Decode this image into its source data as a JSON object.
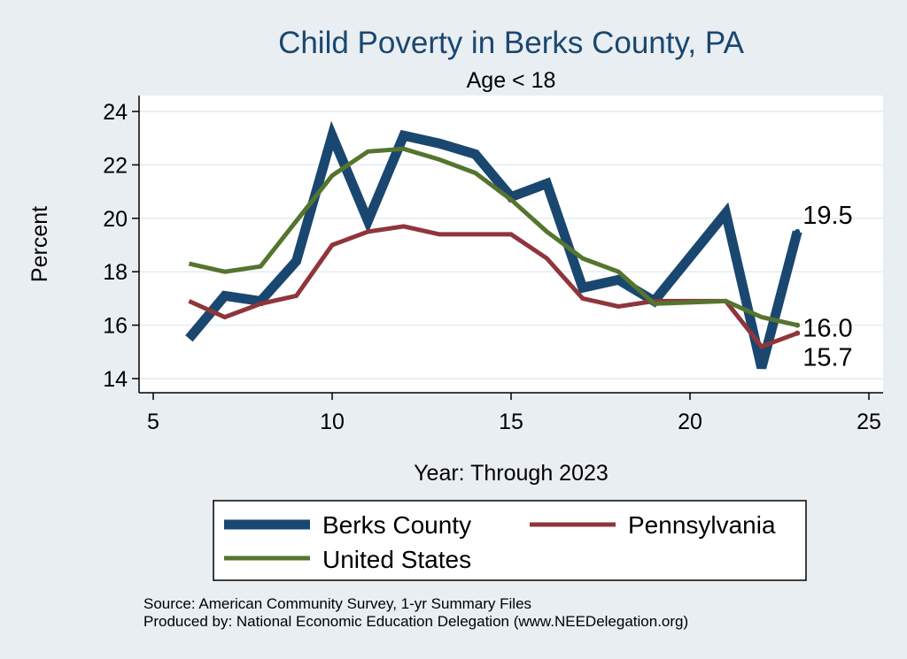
{
  "chart_data": {
    "type": "line",
    "title": "Child Poverty in Berks County, PA",
    "subtitle": "Age < 18",
    "xlabel": "Year: Through 2023",
    "ylabel": "Percent",
    "xlim": [
      5,
      25
    ],
    "ylim": [
      14,
      24
    ],
    "xticks": [
      5,
      10,
      15,
      20,
      25
    ],
    "yticks": [
      14,
      16,
      18,
      20,
      22,
      24
    ],
    "grid": true,
    "legend_position": "bottom",
    "series": [
      {
        "name": "Berks County",
        "color": "#1a476f",
        "x": [
          6,
          7,
          8,
          9,
          10,
          11,
          12,
          13,
          14,
          15,
          16,
          17,
          18,
          19,
          21,
          22,
          23
        ],
        "values": [
          15.5,
          17.1,
          16.9,
          18.4,
          23.1,
          19.9,
          23.1,
          22.8,
          22.4,
          20.8,
          21.3,
          17.4,
          17.7,
          16.9,
          20.2,
          14.4,
          19.5
        ],
        "end_label": "19.5"
      },
      {
        "name": "Pennsylvania",
        "color": "#90353b",
        "x": [
          6,
          7,
          8,
          9,
          10,
          11,
          12,
          13,
          14,
          15,
          16,
          17,
          18,
          19,
          21,
          22,
          23
        ],
        "values": [
          16.9,
          16.3,
          16.8,
          17.1,
          19.0,
          19.5,
          19.7,
          19.4,
          19.4,
          19.4,
          18.5,
          17.0,
          16.7,
          16.9,
          16.9,
          15.2,
          15.7
        ],
        "end_label": "15.7"
      },
      {
        "name": "United States",
        "color": "#55752f",
        "x": [
          6,
          7,
          8,
          9,
          10,
          11,
          12,
          13,
          14,
          15,
          16,
          17,
          18,
          19,
          21,
          22,
          23
        ],
        "values": [
          18.3,
          18.0,
          18.2,
          19.9,
          21.6,
          22.5,
          22.6,
          22.2,
          21.7,
          20.7,
          19.5,
          18.5,
          18.0,
          16.8,
          16.9,
          16.3,
          16.0
        ],
        "end_label": "16.0"
      }
    ],
    "source_lines": [
      "Source: American Community Survey, 1-yr Summary Files",
      "Produced by: National Economic Education Delegation (www.NEEDelegation.org)"
    ]
  }
}
